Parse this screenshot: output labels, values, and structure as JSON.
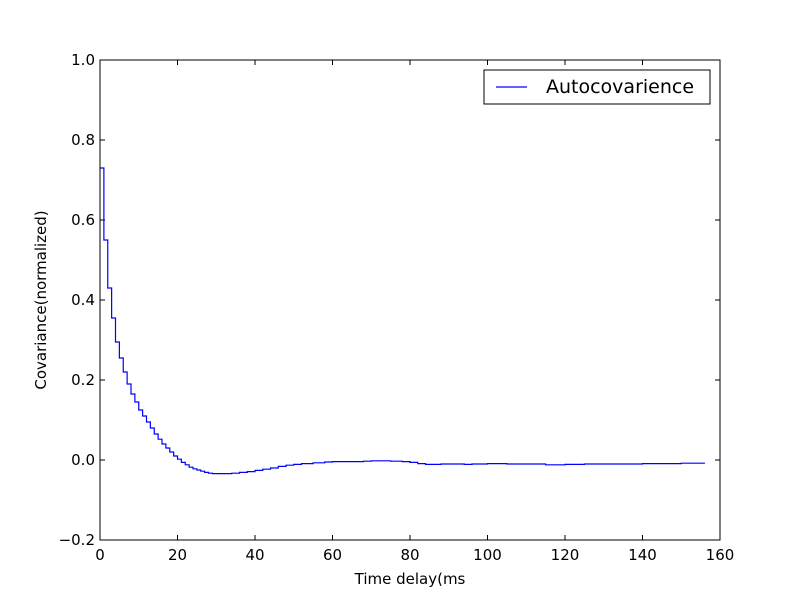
{
  "chart_data": {
    "type": "line",
    "title": "",
    "xlabel": "Time delay(ms",
    "ylabel": "Covariance(normalized)",
    "xlim": [
      0,
      160
    ],
    "ylim": [
      -0.2,
      1.0
    ],
    "x_ticks": [
      0,
      20,
      40,
      60,
      80,
      100,
      120,
      140,
      160
    ],
    "y_ticks": [
      -0.2,
      0.0,
      0.2,
      0.4,
      0.6,
      0.8,
      1.0
    ],
    "x_tick_labels": [
      "0",
      "20",
      "40",
      "60",
      "80",
      "100",
      "120",
      "140",
      "160"
    ],
    "y_tick_labels": [
      "−0.2",
      "0.0",
      "0.2",
      "0.4",
      "0.6",
      "0.8",
      "1.0"
    ],
    "legend_position": "top-right",
    "grid": false,
    "series": [
      {
        "name": "Autocovarience",
        "color": "#0000ff",
        "drawstyle": "steps",
        "x": [
          0,
          1,
          2,
          3,
          4,
          5,
          6,
          7,
          8,
          9,
          10,
          11,
          12,
          13,
          14,
          15,
          16,
          17,
          18,
          19,
          20,
          21,
          22,
          23,
          24,
          25,
          26,
          27,
          28,
          29,
          30,
          32,
          34,
          36,
          38,
          40,
          42,
          44,
          46,
          48,
          50,
          52,
          55,
          58,
          60,
          62,
          65,
          68,
          70,
          72,
          75,
          78,
          80,
          82,
          84,
          86,
          88,
          90,
          92,
          94,
          96,
          100,
          105,
          110,
          115,
          120,
          125,
          130,
          135,
          140,
          145,
          150,
          156
        ],
        "y": [
          0.73,
          0.55,
          0.43,
          0.355,
          0.295,
          0.255,
          0.22,
          0.19,
          0.165,
          0.145,
          0.125,
          0.11,
          0.095,
          0.08,
          0.065,
          0.052,
          0.04,
          0.03,
          0.02,
          0.01,
          0.002,
          -0.006,
          -0.012,
          -0.018,
          -0.022,
          -0.025,
          -0.028,
          -0.031,
          -0.033,
          -0.034,
          -0.034,
          -0.034,
          -0.033,
          -0.031,
          -0.029,
          -0.026,
          -0.023,
          -0.02,
          -0.016,
          -0.013,
          -0.011,
          -0.009,
          -0.007,
          -0.005,
          -0.004,
          -0.004,
          -0.004,
          -0.003,
          -0.002,
          -0.002,
          -0.003,
          -0.004,
          -0.006,
          -0.009,
          -0.011,
          -0.011,
          -0.01,
          -0.01,
          -0.01,
          -0.011,
          -0.01,
          -0.009,
          -0.01,
          -0.01,
          -0.012,
          -0.011,
          -0.01,
          -0.01,
          -0.01,
          -0.009,
          -0.009,
          -0.008,
          -0.009
        ]
      }
    ]
  }
}
